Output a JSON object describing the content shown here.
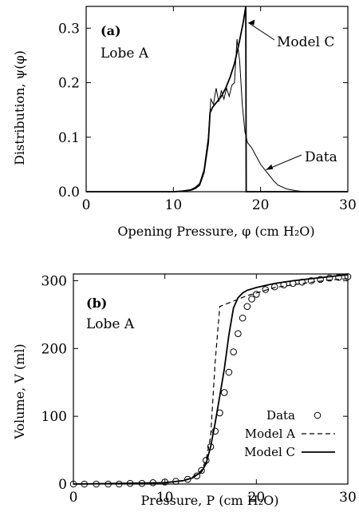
{
  "chart_data": [
    {
      "type": "line",
      "panel_label": "(a)",
      "annotation": "Lobe A",
      "xlabel": "Opening Pressure, φ (cm H₂O)",
      "ylabel": "Distribution, ψ(φ)",
      "xlim": [
        0,
        30
      ],
      "ylim": [
        0,
        0.34
      ],
      "xticks": [
        0,
        10,
        20,
        30
      ],
      "yticks": [
        0.0,
        0.1,
        0.2,
        0.3
      ],
      "ytick_labels": [
        "0.0",
        "0.1",
        "0.2",
        "0.3"
      ],
      "series": [
        {
          "name": "Model C",
          "style": "solid",
          "x": [
            0,
            10,
            11,
            12,
            12.5,
            13,
            13.5,
            14,
            14.2,
            14.5,
            15,
            15.5,
            16,
            16.5,
            17,
            17.5,
            18,
            18.3,
            18.35,
            18.4,
            30
          ],
          "y": [
            0.0,
            0.0,
            0.001,
            0.003,
            0.006,
            0.012,
            0.035,
            0.09,
            0.145,
            0.155,
            0.165,
            0.175,
            0.19,
            0.21,
            0.235,
            0.27,
            0.31,
            0.34,
            0.0,
            0.0,
            0.0
          ]
        },
        {
          "name": "Data",
          "style": "thin",
          "x": [
            0,
            10,
            11,
            12,
            12.5,
            13,
            13.5,
            14,
            14.3,
            14.6,
            14.9,
            15.2,
            15.5,
            15.8,
            16.1,
            16.4,
            16.7,
            17.0,
            17.3,
            17.6,
            17.9,
            18.2,
            18.5,
            19,
            19.5,
            20,
            20.5,
            21,
            21.5,
            22,
            23,
            24,
            25,
            30
          ],
          "y": [
            0.0,
            0.0,
            0.001,
            0.004,
            0.008,
            0.015,
            0.04,
            0.1,
            0.17,
            0.16,
            0.19,
            0.165,
            0.185,
            0.17,
            0.19,
            0.175,
            0.195,
            0.2,
            0.28,
            0.24,
            0.16,
            0.11,
            0.09,
            0.08,
            0.065,
            0.05,
            0.04,
            0.03,
            0.02,
            0.012,
            0.005,
            0.002,
            0.0,
            0.0
          ]
        }
      ],
      "labels": {
        "model_c": "Model C",
        "data": "Data"
      }
    },
    {
      "type": "line",
      "panel_label": "(b)",
      "annotation": "Lobe A",
      "xlabel": "Pressure, P (cm H₂O)",
      "ylabel": "Volume, V (ml)",
      "xlim": [
        0,
        30
      ],
      "ylim": [
        0,
        310
      ],
      "xticks": [
        0,
        10,
        20,
        30
      ],
      "yticks": [
        0,
        100,
        200,
        300
      ],
      "legend_position": "lower-right",
      "series": [
        {
          "name": "Data",
          "style": "markers",
          "x": [
            0,
            1.2,
            2.5,
            3.8,
            5,
            6.2,
            7.5,
            8.7,
            10,
            11.2,
            12.5,
            13.5,
            14,
            14.5,
            15,
            15.5,
            16,
            16.5,
            17,
            17.5,
            18,
            18.5,
            19,
            19.5,
            20,
            21,
            22,
            23,
            24,
            25,
            26,
            27,
            28,
            29,
            30
          ],
          "y": [
            0,
            0,
            0,
            0,
            0,
            1,
            1,
            2,
            3,
            4,
            7,
            12,
            20,
            35,
            55,
            78,
            105,
            135,
            165,
            195,
            222,
            245,
            262,
            273,
            280,
            287,
            291,
            294,
            296,
            298,
            300,
            302,
            304,
            305,
            306
          ]
        },
        {
          "name": "Model A",
          "style": "dashed",
          "x": [
            0,
            10,
            12,
            13,
            14,
            14.5,
            15,
            15.5,
            16,
            19,
            22,
            25,
            28,
            30
          ],
          "y": [
            0,
            2,
            5,
            10,
            20,
            35,
            70,
            180,
            262,
            278,
            290,
            296,
            301,
            303
          ]
        },
        {
          "name": "Model C",
          "style": "solid",
          "x": [
            0,
            10,
            12,
            13,
            14,
            14.5,
            15,
            15.5,
            16,
            16.5,
            17,
            17.5,
            18,
            18.5,
            19,
            20,
            21,
            22,
            24,
            26,
            28,
            30
          ],
          "y": [
            0,
            2,
            5,
            9,
            18,
            30,
            55,
            90,
            130,
            170,
            220,
            260,
            275,
            282,
            286,
            290,
            293,
            296,
            300,
            303,
            306,
            309
          ]
        }
      ]
    }
  ]
}
